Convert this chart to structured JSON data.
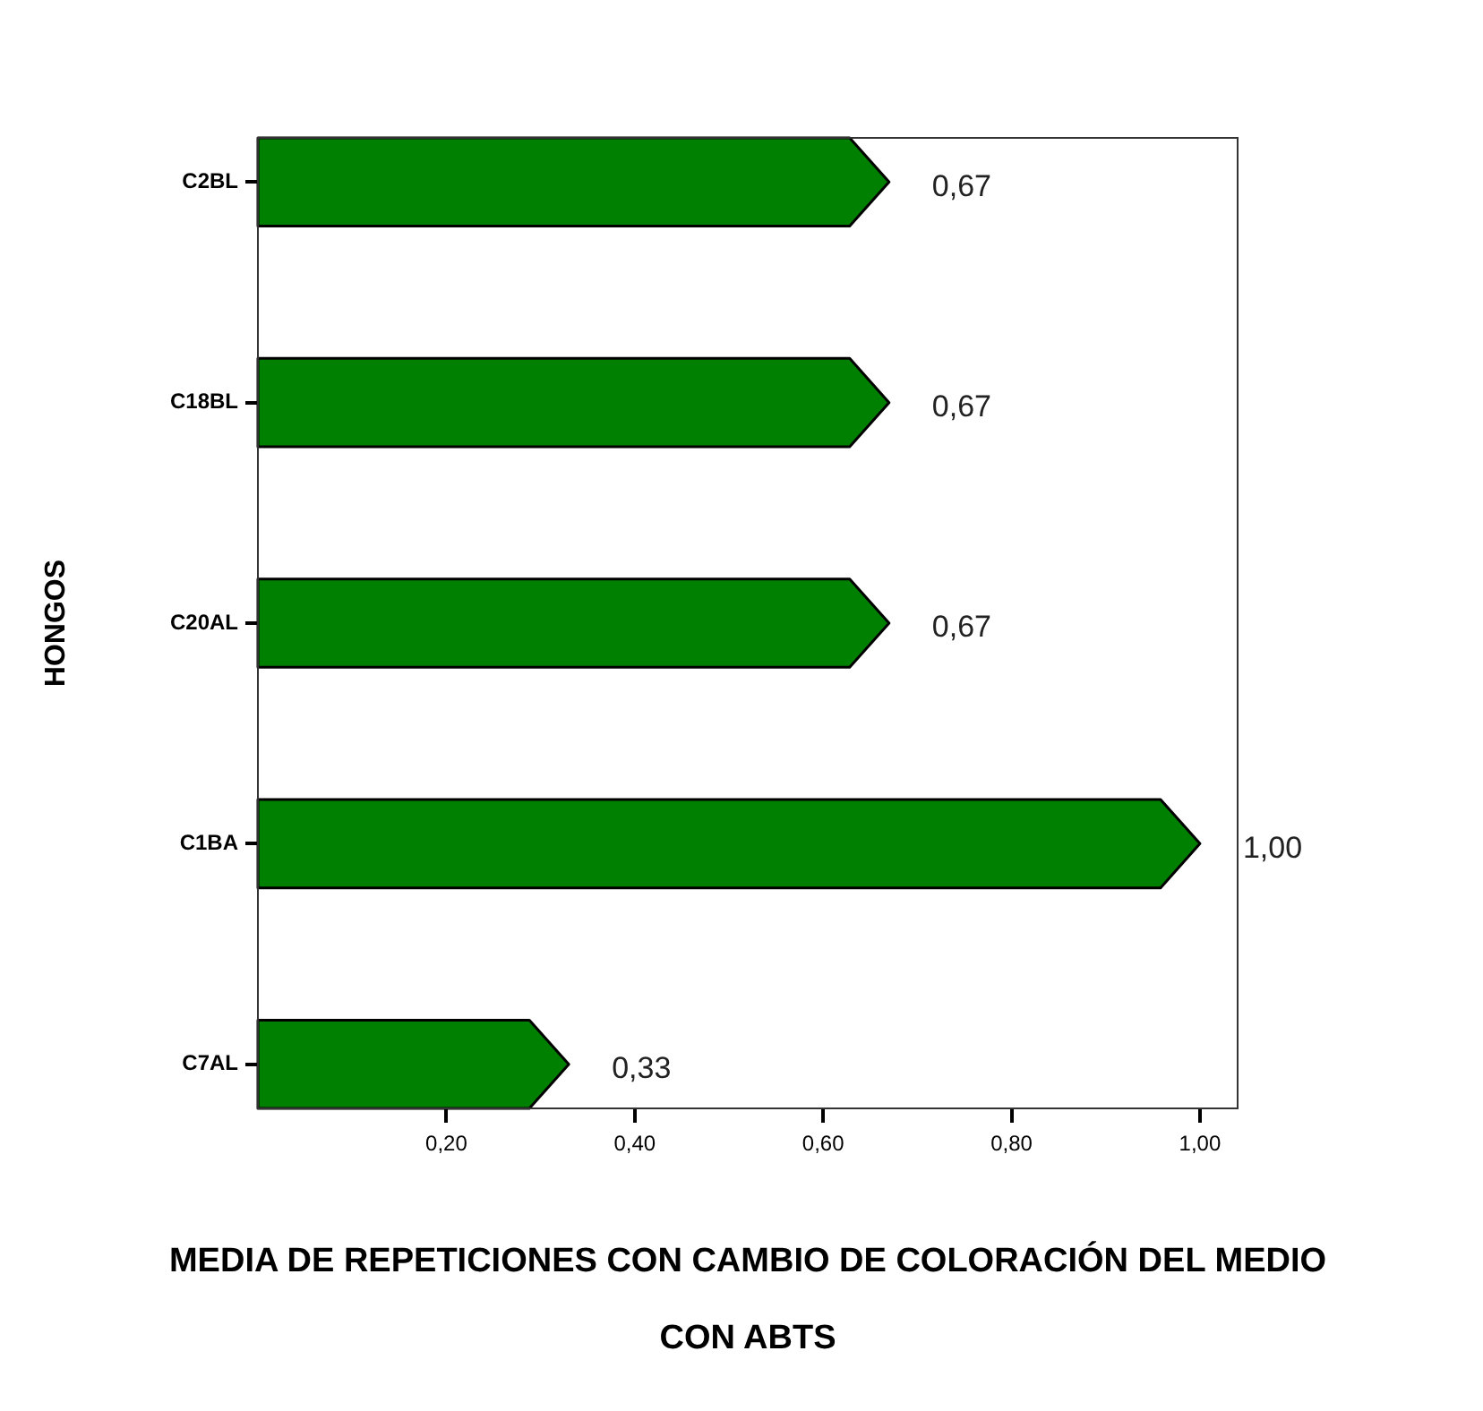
{
  "chart_data": {
    "type": "bar",
    "orientation": "horizontal",
    "categories": [
      "C2BL",
      "C18BL",
      "C20AL",
      "C1BA",
      "C7AL"
    ],
    "values": [
      0.67,
      0.67,
      0.67,
      1.0,
      0.33
    ],
    "color": "#008000",
    "value_labels": [
      "0,67",
      "0,67",
      "0,67",
      "1,00",
      "0,33"
    ],
    "xlim": [
      0,
      1.04
    ],
    "xticks": [
      {
        "value": 0.2,
        "label": "0,20"
      },
      {
        "value": 0.4,
        "label": "0,40"
      },
      {
        "value": 0.6,
        "label": "0,60"
      },
      {
        "value": 0.8,
        "label": "0,80"
      },
      {
        "value": 1.0,
        "label": "1,00"
      }
    ],
    "xlabel": "MEDIA DE REPETICIONES CON CAMBIO DE COLORACIÓN DEL MEDIO CON ABTS",
    "ylabel": "HONGOS"
  }
}
